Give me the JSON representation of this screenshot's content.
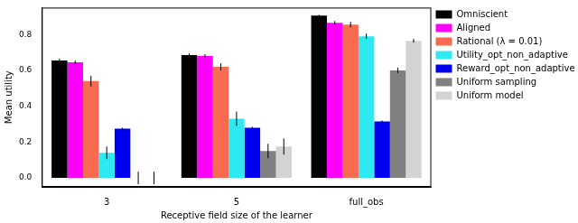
{
  "chart_data": {
    "type": "bar",
    "x_label": "Receptive field size of the learner",
    "y_label": "Mean utility",
    "categories": [
      "3",
      "5",
      "full_obs"
    ],
    "series": [
      {
        "name": "Omniscient",
        "color": "#000000",
        "values": [
          0.655,
          0.685,
          0.905
        ],
        "errors": [
          0.01,
          0.01,
          0.005
        ]
      },
      {
        "name": "Aligned",
        "color": "#ff00ff",
        "values": [
          0.645,
          0.68,
          0.865
        ],
        "errors": [
          0.01,
          0.01,
          0.01
        ]
      },
      {
        "name": "Rational (λ = 0.01)",
        "color": "#f96b50",
        "values": [
          0.54,
          0.62,
          0.855
        ],
        "errors": [
          0.03,
          0.02,
          0.015
        ]
      },
      {
        "name": "Utility_opt_non_adaptive",
        "color": "#2ee8f2",
        "values": [
          0.14,
          0.33,
          0.79
        ],
        "errors": [
          0.035,
          0.04,
          0.015
        ]
      },
      {
        "name": "Reward_opt_non_adaptive",
        "color": "#0000f0",
        "values": [
          0.275,
          0.28,
          0.315
        ],
        "errors": [
          0.005,
          0.005,
          0.005
        ]
      },
      {
        "name": "Uniform sampling",
        "color": "#808080",
        "values": [
          0.0,
          0.15,
          0.6
        ],
        "errors": [
          0.035,
          0.04,
          0.015
        ]
      },
      {
        "name": "Uniform model",
        "color": "#d3d3d3",
        "values": [
          0.0,
          0.175,
          0.765
        ],
        "errors": [
          0.035,
          0.045,
          0.01
        ]
      }
    ],
    "ylim": [
      -0.05,
      0.95
    ],
    "yticks": [
      {
        "value": 0,
        "label": "0.0"
      },
      {
        "value": 0.2,
        "label": "0.2"
      },
      {
        "value": 0.4,
        "label": "0.4"
      },
      {
        "value": 0.6,
        "label": "0.6"
      },
      {
        "value": 0.8,
        "label": "0.8"
      }
    ],
    "grid": false,
    "legend": "right"
  }
}
